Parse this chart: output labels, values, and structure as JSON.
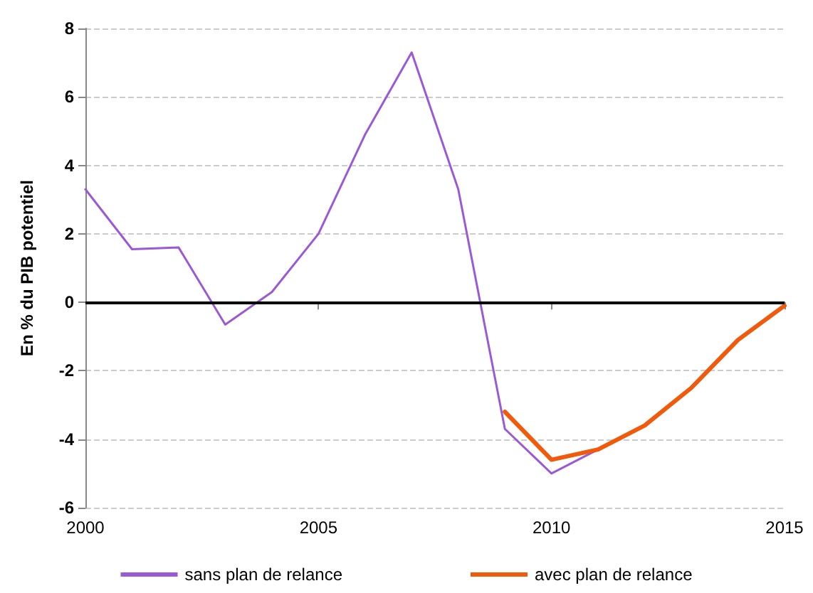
{
  "chart_data": {
    "type": "line",
    "ylabel": "En % du PIB potentiel",
    "x": [
      2000,
      2001,
      2002,
      2003,
      2004,
      2005,
      2006,
      2007,
      2008,
      2009,
      2010,
      2011,
      2012,
      2013,
      2014,
      2015
    ],
    "series": [
      {
        "name": "sans plan de relance",
        "color": "#9b59d6",
        "values": [
          3.3,
          1.55,
          1.6,
          -0.65,
          0.3,
          2.0,
          4.9,
          7.3,
          3.3,
          -3.7,
          -5.0,
          -4.3,
          null,
          null,
          null,
          null
        ]
      },
      {
        "name": "avec plan de relance",
        "color": "#f05a0a",
        "values": [
          null,
          null,
          null,
          null,
          null,
          null,
          null,
          null,
          null,
          -3.2,
          -4.6,
          -4.3,
          -3.6,
          -2.5,
          -1.1,
          -0.1
        ]
      }
    ],
    "xlim": [
      2000,
      2015
    ],
    "xticks": [
      2000,
      2005,
      2010,
      2015
    ],
    "ylim": [
      -6,
      8
    ],
    "yticks": [
      -6,
      -4,
      -2,
      0,
      2,
      4,
      6,
      8
    ],
    "ref_lines": [
      {
        "axis": "y",
        "value": 0,
        "color": "#000000"
      }
    ],
    "grid": "y",
    "legend": "bottom",
    "marker": "none",
    "line_style": "solid"
  }
}
